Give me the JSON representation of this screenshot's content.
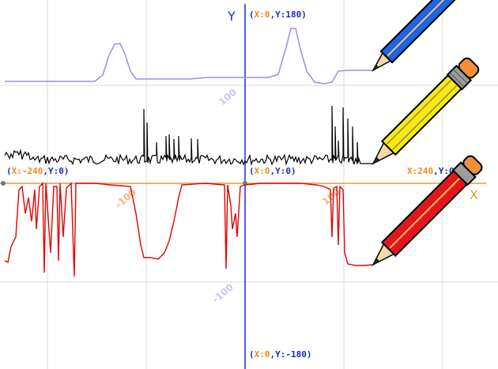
{
  "stage": {
    "x_label": "X",
    "y_label": "Y",
    "tick_labels": [
      "100",
      "-100",
      "100",
      "-100"
    ],
    "coordinates": {
      "top": {
        "x": "X:0",
        "y": "Y:180"
      },
      "bottom": {
        "x": "X:0",
        "y": "Y:-180"
      },
      "left": {
        "x": "X:-240",
        "y": "Y:0"
      },
      "center": {
        "x": "X:0",
        "y": "Y:0"
      },
      "right": {
        "x": "X:240",
        "y": "Y:0"
      }
    },
    "traces": [
      {
        "color": "#a08ce6",
        "pen": "blue pencil"
      },
      {
        "color": "#000000",
        "pen": "yellow pencil"
      },
      {
        "color": "#e60000",
        "pen": "red pencil"
      }
    ]
  },
  "colors": {
    "grid": "#dcdcdc",
    "x_axis": "#e89a3c",
    "y_axis": "#1e2fc8",
    "coord_x": "#f08a1c",
    "coord_y": "#1f2bb8",
    "tick_label": "#c8c8f0",
    "tick_label_red": "#f5b28a"
  }
}
